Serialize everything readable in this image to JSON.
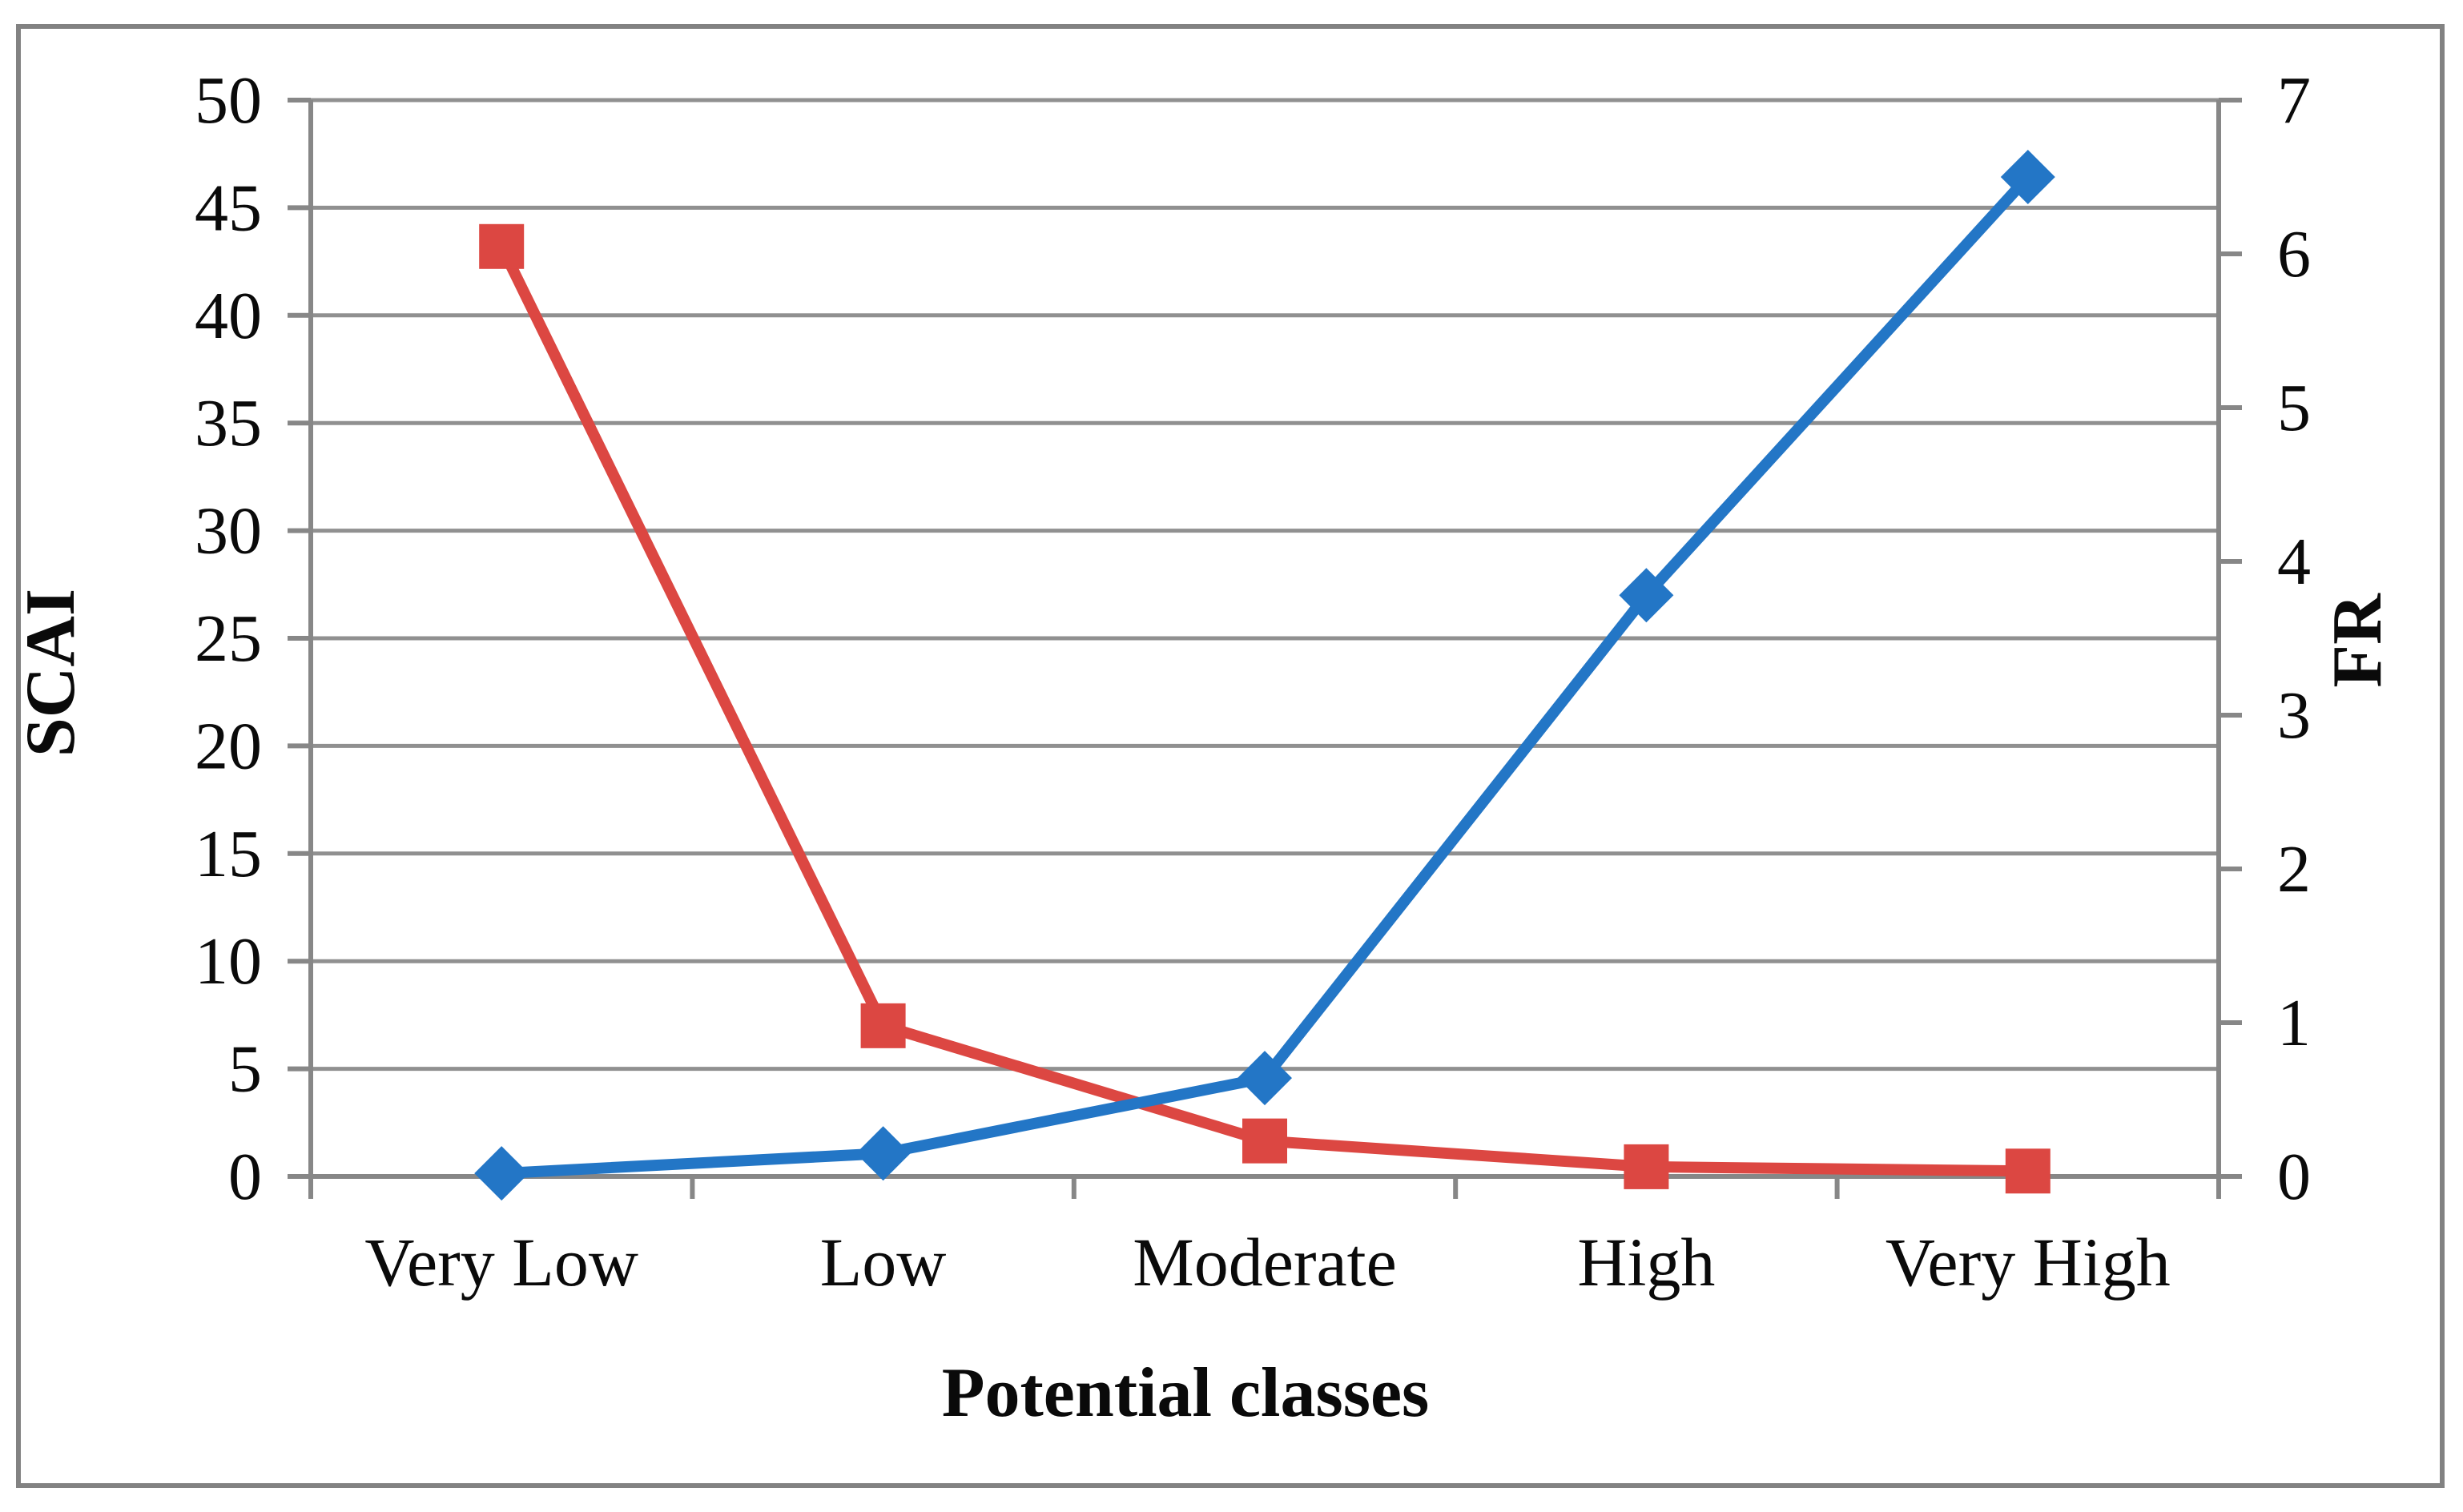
{
  "chart_data": {
    "type": "line",
    "title": "",
    "categories": [
      "Very Low",
      "Low",
      "Moderate",
      "High",
      "Very High"
    ],
    "xlabel": "Potential classes",
    "left_axis": {
      "label": "SCAI",
      "min": 0,
      "max": 50,
      "step": 5,
      "tick_labels": [
        "0",
        "5",
        "10",
        "15",
        "20",
        "25",
        "30",
        "35",
        "40",
        "45",
        "50"
      ]
    },
    "right_axis": {
      "label": "FR",
      "min": 0,
      "max": 7,
      "step": 1,
      "tick_labels": [
        "0",
        "1",
        "2",
        "3",
        "4",
        "5",
        "6",
        "7"
      ]
    },
    "series": [
      {
        "name": "SCAI",
        "axis": "left",
        "marker": "square",
        "color": "#DC4742",
        "values": [
          43.2,
          7.0,
          1.65,
          0.45,
          0.25
        ]
      },
      {
        "name": "FR",
        "axis": "right",
        "marker": "diamond",
        "color": "#2376C6",
        "values": [
          0.02,
          0.15,
          0.64,
          3.78,
          6.5
        ]
      }
    ],
    "grid": true,
    "legend": "none"
  },
  "styles": {
    "background": "#FFFFFF",
    "border_color": "#828282",
    "axis_color": "#878787",
    "grid_color": "#909090",
    "text_color": "#0A0A0A",
    "scai_color": "#DC4742",
    "fr_color": "#2376C6"
  }
}
